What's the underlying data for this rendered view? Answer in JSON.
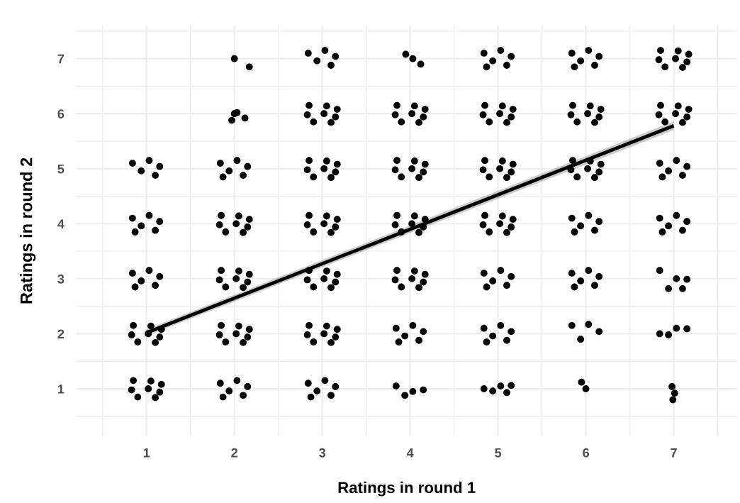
{
  "chart_data": {
    "type": "scatter",
    "xlabel": "Ratings in round 1",
    "ylabel": "Ratings in round 2",
    "xlim": [
      0.2,
      7.72
    ],
    "ylim": [
      0.14,
      7.6
    ],
    "xticks": [
      1,
      2,
      3,
      4,
      5,
      6,
      7
    ],
    "yticks": [
      1,
      2,
      3,
      4,
      5,
      6,
      7
    ],
    "grid": true,
    "series": [
      {
        "type": "scatter",
        "color": "#050505",
        "marker": "circle",
        "x": [
          0.85,
          1.05,
          1.17,
          0.83,
          1.02,
          1.15,
          0.9,
          1.1,
          0.85,
          1.05,
          1.17,
          0.83,
          1.02,
          1.15,
          0.9,
          1.1,
          0.84,
          1.03,
          1.15,
          0.94,
          1.1,
          0.87,
          0.84,
          1.03,
          1.15,
          0.94,
          1.1,
          0.87,
          0.84,
          1.03,
          1.15,
          0.94,
          1.1,
          1.84,
          2.03,
          2.15,
          1.94,
          2.1,
          1.87,
          1.85,
          2.05,
          2.17,
          1.83,
          2.02,
          2.15,
          1.9,
          2.1,
          1.85,
          2.05,
          2.17,
          1.83,
          2.02,
          2.15,
          1.9,
          2.1,
          1.85,
          2.05,
          2.17,
          1.83,
          2.02,
          2.15,
          1.9,
          2.1,
          1.84,
          2.03,
          2.15,
          1.94,
          2.1,
          1.87,
          2.0,
          1.97,
          2.12,
          2.03,
          2.0,
          2.17,
          2.84,
          3.03,
          3.15,
          2.94,
          3.1,
          2.87,
          2.85,
          3.05,
          3.17,
          2.83,
          3.02,
          3.15,
          2.9,
          3.1,
          2.85,
          3.05,
          3.17,
          2.83,
          3.02,
          3.15,
          2.9,
          3.1,
          2.85,
          3.05,
          3.17,
          2.83,
          3.02,
          3.15,
          2.9,
          3.1,
          2.85,
          3.05,
          3.17,
          2.83,
          3.02,
          3.15,
          2.9,
          3.1,
          2.85,
          3.05,
          3.17,
          2.83,
          3.02,
          3.15,
          2.9,
          3.1,
          2.84,
          3.03,
          3.15,
          2.94,
          3.1,
          3.84,
          4.03,
          4.15,
          3.94,
          3.84,
          4.03,
          4.15,
          3.94,
          4.1,
          3.87,
          3.85,
          4.05,
          4.17,
          3.83,
          4.02,
          4.15,
          3.9,
          4.1,
          3.85,
          4.05,
          4.17,
          3.83,
          4.02,
          4.15,
          3.9,
          4.1,
          3.85,
          4.05,
          4.17,
          3.83,
          4.02,
          4.15,
          3.9,
          4.1,
          3.85,
          4.05,
          4.17,
          3.83,
          4.02,
          4.15,
          3.9,
          4.1,
          3.95,
          4.03,
          4.12,
          4.84,
          5.03,
          5.15,
          4.94,
          5.1,
          4.84,
          5.03,
          5.15,
          4.94,
          5.1,
          4.87,
          4.84,
          5.03,
          5.15,
          4.94,
          5.1,
          4.87,
          4.85,
          5.05,
          5.17,
          4.83,
          5.02,
          5.15,
          4.9,
          5.1,
          4.85,
          5.05,
          5.17,
          4.83,
          5.02,
          5.15,
          4.9,
          5.1,
          4.85,
          5.05,
          5.17,
          4.83,
          5.02,
          5.15,
          4.9,
          5.1,
          4.84,
          5.03,
          5.15,
          4.94,
          5.1,
          4.87,
          5.95,
          6.0,
          5.84,
          6.03,
          6.15,
          5.94,
          5.84,
          6.03,
          6.15,
          5.94,
          6.1,
          5.87,
          5.84,
          6.03,
          6.15,
          5.94,
          6.1,
          5.87,
          5.85,
          6.05,
          6.17,
          5.83,
          6.02,
          6.15,
          5.9,
          6.1,
          5.85,
          6.05,
          6.17,
          5.83,
          6.02,
          6.15,
          5.9,
          6.1,
          5.84,
          6.03,
          6.15,
          5.94,
          6.1,
          5.87,
          6.98,
          7.01,
          6.99,
          6.84,
          7.03,
          7.15,
          6.94,
          6.84,
          7.03,
          7.15,
          6.94,
          7.1,
          6.84,
          7.03,
          7.15,
          6.94,
          7.1,
          6.87,
          6.84,
          7.03,
          7.15,
          6.94,
          7.1,
          6.87,
          6.85,
          7.05,
          7.17,
          6.83,
          7.02,
          7.15,
          6.9,
          7.1,
          6.85,
          7.05,
          7.17,
          6.83,
          7.02,
          7.15,
          6.9,
          7.1
        ],
        "values": [
          1.15,
          1.14,
          1.08,
          0.98,
          1.0,
          0.94,
          0.85,
          0.84,
          2.15,
          2.14,
          2.08,
          1.98,
          2.0,
          1.94,
          1.85,
          1.84,
          3.1,
          3.15,
          3.04,
          2.96,
          2.88,
          2.85,
          4.1,
          4.15,
          4.04,
          3.96,
          3.88,
          3.85,
          5.1,
          5.15,
          5.04,
          4.96,
          4.88,
          1.1,
          1.15,
          1.04,
          0.96,
          0.88,
          0.85,
          2.15,
          2.14,
          2.08,
          1.98,
          2.0,
          1.94,
          1.85,
          1.84,
          3.15,
          3.14,
          3.08,
          2.98,
          3.0,
          2.94,
          2.85,
          2.84,
          4.15,
          4.14,
          4.08,
          3.98,
          4.0,
          3.94,
          3.85,
          3.84,
          5.1,
          5.15,
          5.04,
          4.96,
          4.88,
          4.85,
          6.0,
          5.88,
          5.92,
          6.02,
          7.0,
          6.85,
          1.1,
          1.15,
          1.04,
          0.96,
          0.88,
          0.85,
          2.15,
          2.14,
          2.08,
          1.98,
          2.0,
          1.94,
          1.85,
          1.84,
          3.15,
          3.14,
          3.08,
          2.98,
          3.0,
          2.94,
          2.85,
          2.84,
          4.15,
          4.14,
          4.08,
          3.98,
          4.0,
          3.94,
          3.85,
          3.84,
          5.15,
          5.14,
          5.08,
          4.98,
          5.0,
          4.94,
          4.85,
          4.84,
          6.15,
          6.14,
          6.08,
          5.98,
          6.0,
          5.94,
          5.85,
          5.84,
          7.1,
          7.15,
          7.04,
          6.96,
          6.88,
          1.05,
          0.95,
          0.98,
          0.88,
          2.1,
          2.15,
          2.04,
          1.96,
          1.88,
          1.85,
          3.15,
          3.14,
          3.08,
          2.98,
          3.0,
          2.94,
          2.85,
          2.84,
          4.15,
          4.14,
          4.08,
          3.98,
          4.0,
          3.94,
          3.85,
          3.84,
          5.15,
          5.14,
          5.08,
          4.98,
          5.0,
          4.94,
          4.85,
          4.84,
          6.15,
          6.14,
          6.08,
          5.98,
          6.0,
          5.94,
          5.85,
          5.84,
          7.08,
          7.0,
          6.9,
          1.0,
          1.05,
          1.06,
          0.96,
          0.93,
          2.1,
          2.15,
          2.04,
          1.96,
          1.88,
          1.85,
          3.1,
          3.15,
          3.04,
          2.96,
          2.88,
          2.85,
          4.15,
          4.14,
          4.08,
          3.98,
          4.0,
          3.94,
          3.85,
          3.84,
          5.15,
          5.14,
          5.08,
          4.98,
          5.0,
          4.94,
          4.85,
          4.84,
          6.15,
          6.14,
          6.08,
          5.98,
          6.0,
          5.94,
          5.85,
          5.84,
          7.1,
          7.15,
          7.04,
          6.96,
          6.88,
          6.85,
          1.12,
          1.0,
          2.15,
          2.17,
          2.04,
          1.9,
          3.1,
          3.15,
          3.04,
          2.96,
          2.88,
          2.85,
          4.1,
          4.15,
          4.04,
          3.96,
          3.88,
          3.85,
          5.15,
          5.14,
          5.08,
          4.98,
          5.0,
          4.94,
          4.85,
          4.84,
          6.15,
          6.14,
          6.08,
          5.98,
          6.0,
          5.94,
          5.85,
          5.84,
          7.1,
          7.15,
          7.04,
          6.96,
          6.88,
          6.85,
          1.04,
          0.92,
          0.8,
          2.0,
          2.1,
          2.09,
          1.98,
          3.15,
          3.0,
          2.99,
          2.82,
          2.82,
          4.1,
          4.15,
          4.04,
          3.96,
          3.88,
          3.85,
          5.1,
          5.15,
          5.04,
          4.96,
          4.88,
          4.85,
          6.15,
          6.14,
          6.08,
          5.98,
          6.0,
          5.94,
          5.85,
          5.84,
          7.15,
          7.14,
          7.08,
          6.98,
          7.0,
          6.94,
          6.85,
          6.84
        ]
      },
      {
        "type": "line",
        "color": "#000000",
        "x": [
          1,
          7
        ],
        "values": [
          2.02,
          5.78
        ],
        "lower": [
          1.96,
          5.7
        ],
        "upper": [
          2.08,
          5.86
        ]
      }
    ]
  }
}
